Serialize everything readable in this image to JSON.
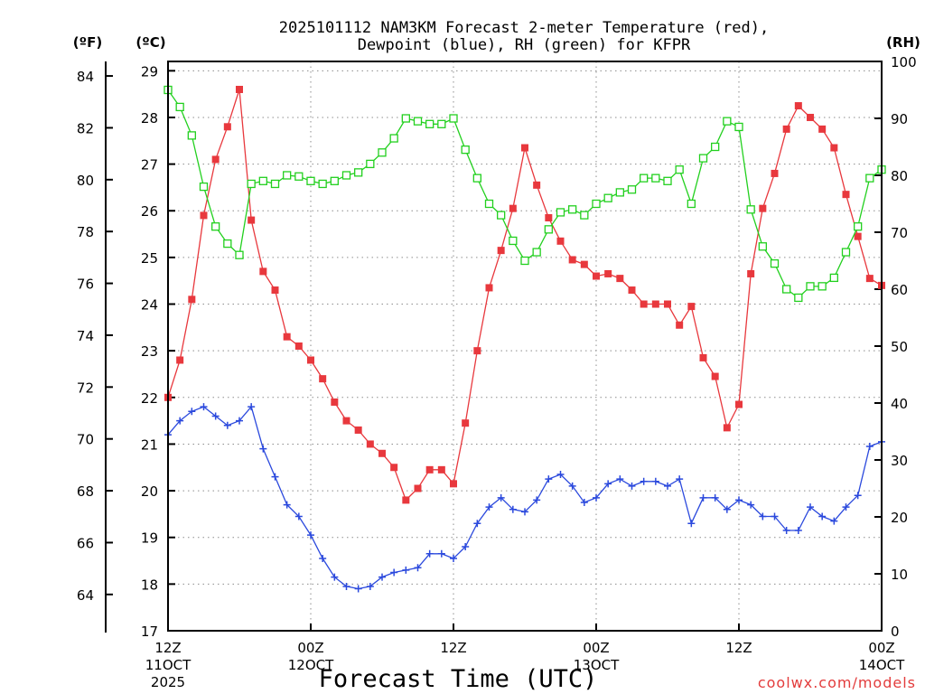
{
  "chart_data": {
    "type": "line",
    "title": "2025101112 NAM3KM Forecast 2-meter Temperature (red),",
    "title_line2": "Dewpoint (blue), RH (green) for KFPR",
    "xlabel": "Forecast Time (UTC)",
    "watermark": "coolwx.com/models",
    "x_hours": [
      0,
      1,
      2,
      3,
      4,
      5,
      6,
      7,
      8,
      9,
      10,
      11,
      12,
      13,
      14,
      15,
      16,
      17,
      18,
      19,
      20,
      21,
      22,
      23,
      24,
      25,
      26,
      27,
      28,
      29,
      30,
      31,
      32,
      33,
      34,
      35,
      36,
      37,
      38,
      39,
      40,
      41,
      42,
      43,
      44,
      45,
      46,
      47,
      48,
      49,
      50,
      51,
      52,
      53,
      54,
      55,
      56,
      57,
      58,
      59,
      60
    ],
    "xlim": [
      0,
      60
    ],
    "x_ticks": [
      {
        "hour": 0,
        "lines": [
          "12Z",
          "11OCT",
          "2025"
        ]
      },
      {
        "hour": 12,
        "lines": [
          "00Z",
          "12OCT"
        ]
      },
      {
        "hour": 24,
        "lines": [
          "12Z",
          ""
        ]
      },
      {
        "hour": 36,
        "lines": [
          "00Z",
          "13OCT"
        ]
      },
      {
        "hour": 48,
        "lines": [
          "12Z",
          ""
        ]
      },
      {
        "hour": 60,
        "lines": [
          "00Z",
          "14OCT"
        ]
      }
    ],
    "axes": {
      "celsius": {
        "label": "(ºC)",
        "ylim": [
          17,
          29.2
        ],
        "ticks": [
          17,
          18,
          19,
          20,
          21,
          22,
          23,
          24,
          25,
          26,
          27,
          28,
          29
        ]
      },
      "fahrenheit": {
        "label": "(ºF)",
        "ticks": [
          64,
          66,
          68,
          70,
          72,
          74,
          76,
          78,
          80,
          82,
          84
        ]
      },
      "rh": {
        "label": "(RH)",
        "ylim": [
          0,
          100
        ],
        "ticks": [
          0,
          10,
          20,
          30,
          40,
          50,
          60,
          70,
          80,
          90,
          100
        ]
      }
    },
    "series": [
      {
        "name": "Temperature",
        "color": "#e8383d",
        "axis": "celsius",
        "marker": "filled-square",
        "values": [
          22.0,
          22.8,
          24.1,
          25.9,
          27.1,
          27.8,
          28.6,
          25.8,
          24.7,
          24.3,
          23.3,
          23.1,
          22.8,
          22.4,
          21.9,
          21.5,
          21.3,
          21.0,
          20.8,
          20.5,
          19.8,
          20.05,
          20.45,
          20.45,
          20.15,
          21.45,
          23.0,
          24.35,
          25.15,
          26.05,
          27.35,
          26.55,
          25.85,
          25.35,
          24.95,
          24.85,
          24.6,
          24.65,
          24.55,
          24.3,
          24.0,
          24.0,
          24.0,
          23.55,
          23.95,
          22.85,
          22.45,
          21.35,
          21.85,
          24.65,
          26.05,
          26.8,
          27.75,
          28.25,
          28.0,
          27.75,
          27.35,
          26.35,
          25.45,
          24.55,
          24.4
        ]
      },
      {
        "name": "Dewpoint",
        "color": "#2b49dd",
        "axis": "celsius",
        "marker": "plus",
        "values": [
          21.2,
          21.5,
          21.7,
          21.8,
          21.6,
          21.4,
          21.5,
          21.8,
          20.9,
          20.3,
          19.7,
          19.45,
          19.05,
          18.55,
          18.15,
          17.95,
          17.9,
          17.95,
          18.15,
          18.25,
          18.3,
          18.35,
          18.65,
          18.65,
          18.55,
          18.8,
          19.3,
          19.65,
          19.85,
          19.6,
          19.55,
          19.8,
          20.25,
          20.35,
          20.1,
          19.75,
          19.85,
          20.15,
          20.25,
          20.1,
          20.2,
          20.2,
          20.1,
          20.25,
          19.3,
          19.85,
          19.85,
          19.6,
          19.8,
          19.7,
          19.45,
          19.45,
          19.15,
          19.15,
          19.65,
          19.45,
          19.35,
          19.65,
          19.9,
          20.95,
          21.05
        ]
      },
      {
        "name": "RH",
        "color": "#22d01e",
        "axis": "rh",
        "marker": "open-square",
        "values": [
          95,
          92,
          87,
          78,
          71,
          68,
          66,
          78.5,
          79,
          78.5,
          80,
          79.8,
          79,
          78.5,
          79,
          80,
          80.5,
          82,
          84,
          86.5,
          90,
          89.5,
          89,
          89,
          90,
          84.5,
          79.5,
          75,
          73,
          68.5,
          65,
          66.5,
          70.5,
          73.5,
          74,
          73,
          75,
          76,
          77,
          77.5,
          79.5,
          79.5,
          79,
          81,
          75,
          83,
          85,
          89.5,
          88.5,
          74,
          67.5,
          64.5,
          60,
          58.5,
          60.5,
          60.5,
          62,
          66.5,
          71,
          79.5,
          81
        ]
      }
    ]
  }
}
